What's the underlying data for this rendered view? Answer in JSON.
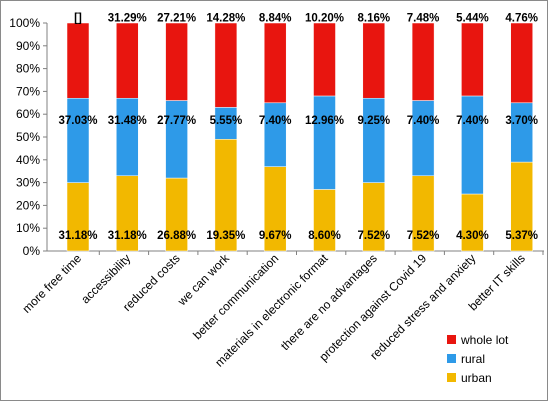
{
  "chart_data": {
    "type": "bar",
    "stacked": true,
    "percent_stacked": true,
    "title": "",
    "xlabel": "",
    "ylabel": "",
    "ylim": [
      0,
      100
    ],
    "y_ticks": [
      "0%",
      "10%",
      "20%",
      "30%",
      "40%",
      "50%",
      "60%",
      "70%",
      "80%",
      "90%",
      "100%"
    ],
    "grid": false,
    "legend_position": "right-bottom",
    "categories": [
      "more free time",
      "accessibility",
      "reduced costs",
      "we can work",
      "better communication",
      "materials in electronic format",
      "there are no advantages",
      "protection against Covid 19",
      "reduced stress and anxiety",
      "better IT skills"
    ],
    "series": [
      {
        "name": "urban",
        "color": "#F2B800",
        "values": [
          31.18,
          31.18,
          26.88,
          19.35,
          9.67,
          8.6,
          7.52,
          7.52,
          4.3,
          5.37
        ],
        "value_labels": [
          "31.18%",
          "31.18%",
          "26.88%",
          "19.35%",
          "9.67%",
          "8.60%",
          "7.52%",
          "7.52%",
          "4.30%",
          "5.37%"
        ],
        "share_percent": [
          30,
          33,
          32,
          49,
          37,
          27,
          30,
          33,
          25,
          39
        ]
      },
      {
        "name": "rural",
        "color": "#2E9AE8",
        "values": [
          37.03,
          31.48,
          27.77,
          5.55,
          7.4,
          12.96,
          9.25,
          7.4,
          7.4,
          3.7
        ],
        "value_labels": [
          "37.03%",
          "31.48%",
          "27.77%",
          "5.55%",
          "7.40%",
          "12.96%",
          "9.25%",
          "7.40%",
          "7.40%",
          "3.70%"
        ],
        "share_percent": [
          37,
          34,
          34,
          14,
          28,
          41,
          37,
          33,
          43,
          26
        ]
      },
      {
        "name": "whole lot",
        "color": "#E8150F",
        "values": [
          null,
          31.29,
          27.21,
          14.28,
          8.84,
          10.2,
          8.16,
          7.48,
          5.44,
          4.76
        ],
        "value_labels": [
          "[]",
          "31.29%",
          "27.21%",
          "14.28%",
          "8.84%",
          "10.20%",
          "8.16%",
          "7.48%",
          "5.44%",
          "4.76%"
        ],
        "share_percent": [
          33,
          33,
          34,
          37,
          35,
          32,
          33,
          34,
          32,
          35
        ]
      }
    ]
  }
}
